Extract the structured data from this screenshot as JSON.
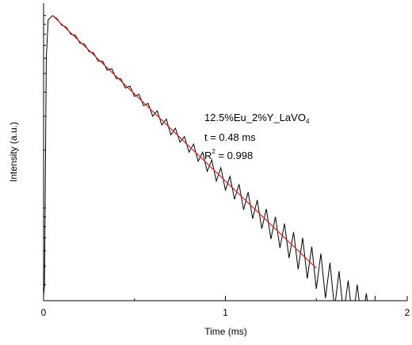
{
  "chart_data": {
    "type": "line",
    "xlabel": "Time (ms)",
    "ylabel": "Intensity (a.u.)",
    "annotations": [
      {
        "text": "12.5%Eu_2%Y_LaVO",
        "sub": "4"
      },
      {
        "text": "t = 0.48 ms"
      },
      {
        "text": "R",
        "sup": "2",
        "rest": " = 0.998"
      }
    ],
    "log_y": true,
    "xlim": [
      0,
      2
    ],
    "xticks": [
      0,
      1,
      2
    ],
    "xminorticks": [
      0.5,
      1.5
    ],
    "ylim": [
      0.033,
      1.16
    ],
    "yminorticks": [
      0.04,
      0.05,
      0.06,
      0.07,
      0.08,
      0.09,
      0.1,
      0.2,
      0.3,
      0.4,
      0.5,
      0.6,
      0.7,
      0.8,
      0.9,
      1
    ],
    "series": [
      {
        "color": "#000000",
        "x": [
          0,
          0.005,
          0.015,
          0.025,
          0.05,
          0.075,
          0.1,
          0.125,
          0.15,
          0.175,
          0.2,
          0.225,
          0.25,
          0.275,
          0.3,
          0.325,
          0.35,
          0.375,
          0.4,
          0.425,
          0.45,
          0.475,
          0.5,
          0.525,
          0.55,
          0.575,
          0.6,
          0.625,
          0.65,
          0.675,
          0.7,
          0.725,
          0.75,
          0.775,
          0.8,
          0.825,
          0.85,
          0.875,
          0.9,
          0.925,
          0.95,
          0.975,
          1,
          1.025,
          1.05,
          1.075,
          1.1,
          1.125,
          1.15,
          1.175,
          1.2,
          1.225,
          1.25,
          1.275,
          1.3,
          1.325,
          1.35,
          1.375,
          1.4,
          1.425,
          1.45,
          1.475,
          1.5,
          1.525,
          1.55,
          1.575,
          1.6,
          1.625,
          1.65,
          1.675,
          1.7,
          1.725,
          1.75,
          1.775,
          1.8,
          1.825
        ],
        "values": [
          0.035,
          0.04,
          0.6,
          0.95,
          1.0,
          0.96,
          0.89,
          0.87,
          0.8,
          0.79,
          0.72,
          0.71,
          0.65,
          0.64,
          0.58,
          0.58,
          0.52,
          0.53,
          0.47,
          0.47,
          0.42,
          0.43,
          0.38,
          0.39,
          0.34,
          0.35,
          0.3,
          0.32,
          0.27,
          0.29,
          0.24,
          0.26,
          0.22,
          0.235,
          0.195,
          0.215,
          0.175,
          0.195,
          0.155,
          0.178,
          0.138,
          0.162,
          0.124,
          0.146,
          0.111,
          0.133,
          0.098,
          0.121,
          0.088,
          0.11,
          0.078,
          0.099,
          0.069,
          0.09,
          0.062,
          0.083,
          0.055,
          0.075,
          0.048,
          0.07,
          0.043,
          0.063,
          0.038,
          0.058,
          0.034,
          0.052,
          0.03,
          0.047,
          0.028,
          0.042,
          0.026,
          0.04,
          0.025,
          0.036,
          0.024,
          0.035
        ]
      },
      {
        "color": "#d62020",
        "x": [
          0.05,
          1.5
        ],
        "values": [
          1.0,
          0.0487
        ]
      }
    ]
  }
}
